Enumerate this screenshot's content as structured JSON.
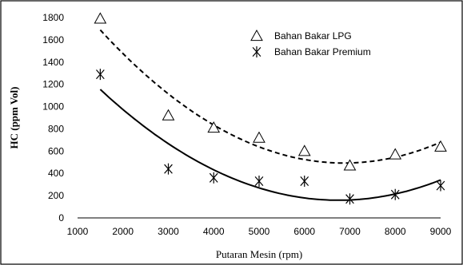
{
  "chart_data": {
    "type": "scatter",
    "title": "",
    "xlabel": "Putaran Mesin (rpm)",
    "ylabel": "HC (ppm Vol)",
    "xlim": [
      1000,
      9000
    ],
    "ylim": [
      0,
      1800
    ],
    "xticks": [
      1000,
      2000,
      3000,
      4000,
      5000,
      6000,
      7000,
      8000,
      9000
    ],
    "yticks": [
      0,
      200,
      400,
      600,
      800,
      1000,
      1200,
      1400,
      1600,
      1800
    ],
    "x_tick_labels": [
      "1000",
      "2000",
      "3000",
      "4000",
      "5000",
      "6000",
      "7000",
      "8000",
      "9000"
    ],
    "y_tick_labels": [
      "0",
      "200",
      "400",
      "600",
      "800",
      "1000",
      "1200",
      "1400",
      "1600",
      "1800"
    ],
    "grid": false,
    "legend_position": "top-right",
    "series": [
      {
        "name": "Bahan Bakar LPG",
        "marker": "triangle",
        "trendline": "polynomial (dashed)",
        "x": [
          1500,
          3000,
          4000,
          5000,
          6000,
          7000,
          8000,
          9000
        ],
        "y": [
          1790,
          920,
          810,
          720,
          600,
          470,
          570,
          640
        ]
      },
      {
        "name": "Bahan Bakar Premium",
        "marker": "asterisk",
        "trendline": "polynomial (solid)",
        "x": [
          1500,
          3000,
          4000,
          5000,
          6000,
          7000,
          8000,
          9000
        ],
        "y": [
          1290,
          440,
          360,
          330,
          330,
          170,
          210,
          290
        ]
      }
    ]
  }
}
